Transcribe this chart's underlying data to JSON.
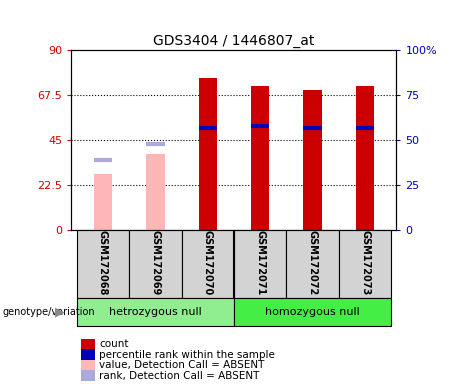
{
  "title": "GDS3404 / 1446807_at",
  "samples": [
    "GSM172068",
    "GSM172069",
    "GSM172070",
    "GSM172071",
    "GSM172072",
    "GSM172073"
  ],
  "count_values": [
    null,
    null,
    76,
    72,
    70,
    72
  ],
  "rank_values": [
    null,
    null,
    51,
    52,
    51,
    51
  ],
  "count_absent": [
    28,
    38,
    null,
    null,
    null,
    null
  ],
  "rank_absent": [
    35,
    43,
    null,
    null,
    null,
    null
  ],
  "left_ylim": [
    0,
    90
  ],
  "right_ylim": [
    0,
    100
  ],
  "left_yticks": [
    0,
    22.5,
    45,
    67.5,
    90
  ],
  "right_yticks": [
    0,
    25,
    50,
    75,
    100
  ],
  "left_yticklabels": [
    "0",
    "22.5",
    "45",
    "67.5",
    "90"
  ],
  "right_yticklabels": [
    "0",
    "25",
    "50",
    "75",
    "100%"
  ],
  "bar_color_present": "#CC0000",
  "bar_color_absent": "#FFB6B6",
  "rank_color_present": "#0000BB",
  "rank_color_absent": "#AAAADD",
  "bar_width": 0.35,
  "groups": [
    {
      "name": "hetrozygous null",
      "color": "#90EE90",
      "xmin": -0.5,
      "xmax": 2.5
    },
    {
      "name": "homozygous null",
      "color": "#44EE44",
      "xmin": 2.5,
      "xmax": 5.5
    }
  ],
  "legend_items": [
    {
      "color": "#CC0000",
      "label": "count"
    },
    {
      "color": "#0000BB",
      "label": "percentile rank within the sample"
    },
    {
      "color": "#FFB6B6",
      "label": "value, Detection Call = ABSENT"
    },
    {
      "color": "#AAAADD",
      "label": "rank, Detection Call = ABSENT"
    }
  ],
  "genotype_label": "genotype/variation",
  "axis_color_left": "#CC0000",
  "axis_color_right": "#0000BB",
  "grid_dotted_levels": [
    22.5,
    45,
    67.5
  ]
}
